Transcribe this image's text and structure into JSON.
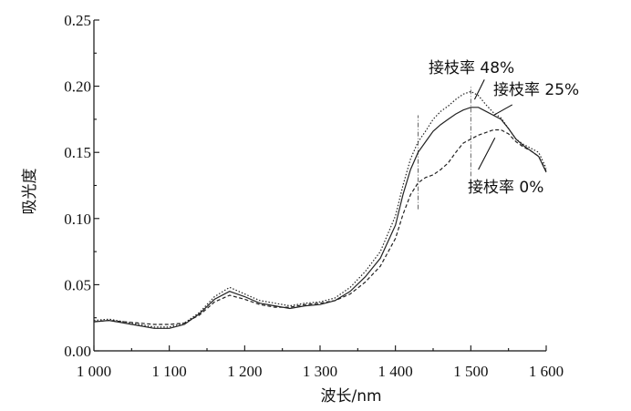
{
  "chart_data": {
    "type": "line",
    "xlabel": "波长/nm",
    "ylabel": "吸光度",
    "xlim": [
      1000,
      1600
    ],
    "ylim": [
      0,
      0.25
    ],
    "xticks": [
      1000,
      1100,
      1200,
      1300,
      1400,
      1500,
      1600
    ],
    "xtick_labels": [
      "1 000",
      "1 100",
      "1 200",
      "1 300",
      "1 400",
      "1 500",
      "1 600"
    ],
    "yticks": [
      0,
      0.05,
      0.1,
      0.15,
      0.2,
      0.25
    ],
    "ytick_labels": [
      "0.00",
      "0.05",
      "0.10",
      "0.15",
      "0.20",
      "0.25"
    ],
    "grid": false,
    "vertical_reference_lines": [
      1430,
      1500
    ],
    "series": [
      {
        "name": "接枝率 48%",
        "style": "dotted",
        "x": [
          1000,
          1020,
          1040,
          1060,
          1080,
          1100,
          1120,
          1140,
          1160,
          1180,
          1200,
          1220,
          1240,
          1260,
          1280,
          1300,
          1320,
          1340,
          1360,
          1380,
          1400,
          1410,
          1420,
          1430,
          1440,
          1450,
          1460,
          1470,
          1480,
          1490,
          1500,
          1510,
          1520,
          1530,
          1540,
          1550,
          1560,
          1570,
          1580,
          1590,
          1600
        ],
        "y": [
          0.023,
          0.024,
          0.022,
          0.02,
          0.018,
          0.018,
          0.021,
          0.029,
          0.041,
          0.048,
          0.043,
          0.038,
          0.036,
          0.034,
          0.036,
          0.037,
          0.04,
          0.048,
          0.06,
          0.075,
          0.102,
          0.125,
          0.145,
          0.158,
          0.166,
          0.175,
          0.181,
          0.185,
          0.19,
          0.194,
          0.196,
          0.193,
          0.186,
          0.18,
          0.176,
          0.168,
          0.16,
          0.156,
          0.153,
          0.15,
          0.138
        ]
      },
      {
        "name": "接枝率 25%",
        "style": "solid",
        "x": [
          1000,
          1020,
          1040,
          1060,
          1080,
          1100,
          1120,
          1140,
          1160,
          1180,
          1200,
          1220,
          1240,
          1260,
          1280,
          1300,
          1320,
          1340,
          1360,
          1380,
          1400,
          1410,
          1420,
          1430,
          1440,
          1450,
          1460,
          1470,
          1480,
          1490,
          1500,
          1510,
          1520,
          1530,
          1540,
          1550,
          1560,
          1570,
          1580,
          1590,
          1600
        ],
        "y": [
          0.022,
          0.023,
          0.021,
          0.019,
          0.017,
          0.017,
          0.02,
          0.028,
          0.039,
          0.045,
          0.041,
          0.036,
          0.034,
          0.032,
          0.034,
          0.035,
          0.038,
          0.045,
          0.056,
          0.07,
          0.095,
          0.118,
          0.137,
          0.15,
          0.158,
          0.166,
          0.171,
          0.175,
          0.179,
          0.182,
          0.184,
          0.184,
          0.181,
          0.178,
          0.175,
          0.168,
          0.16,
          0.155,
          0.151,
          0.147,
          0.135
        ]
      },
      {
        "name": "接枝率 0%",
        "style": "dashed",
        "x": [
          1000,
          1020,
          1040,
          1060,
          1080,
          1100,
          1120,
          1140,
          1160,
          1180,
          1200,
          1220,
          1240,
          1260,
          1280,
          1300,
          1320,
          1340,
          1360,
          1380,
          1400,
          1410,
          1420,
          1430,
          1440,
          1450,
          1460,
          1470,
          1480,
          1490,
          1500,
          1510,
          1520,
          1530,
          1540,
          1550,
          1560,
          1570,
          1580,
          1590,
          1600
        ],
        "y": [
          0.022,
          0.023,
          0.022,
          0.021,
          0.02,
          0.02,
          0.021,
          0.027,
          0.037,
          0.042,
          0.039,
          0.035,
          0.033,
          0.033,
          0.035,
          0.036,
          0.038,
          0.043,
          0.052,
          0.064,
          0.085,
          0.103,
          0.118,
          0.127,
          0.131,
          0.133,
          0.137,
          0.142,
          0.15,
          0.157,
          0.16,
          0.163,
          0.165,
          0.167,
          0.167,
          0.164,
          0.158,
          0.154,
          0.151,
          0.147,
          0.136
        ]
      }
    ],
    "annotations": [
      "接枝率  48%",
      "接枝率  25%",
      "接枝率  0%"
    ]
  }
}
